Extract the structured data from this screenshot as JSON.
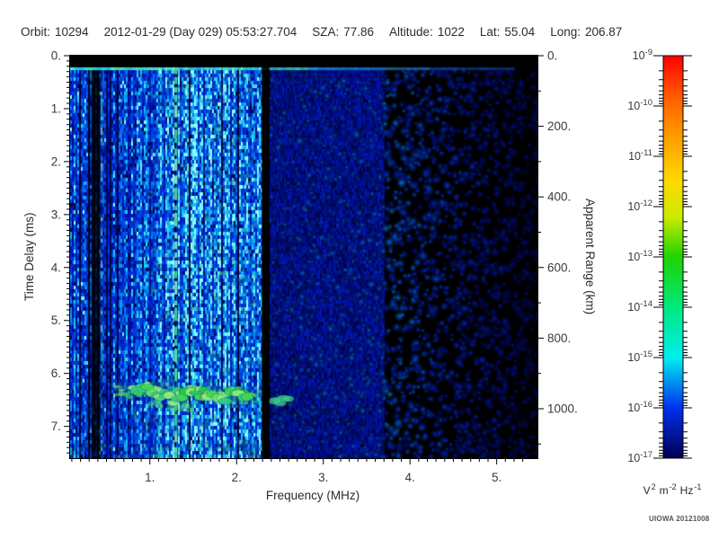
{
  "header": {
    "fields": [
      {
        "label": "Orbit:",
        "value": "10294"
      },
      {
        "label": "",
        "value": "2012-01-29 (Day 029) 05:53:27.704"
      },
      {
        "label": "SZA:",
        "value": "77.86"
      },
      {
        "label": "Altitude:",
        "value": "1022"
      },
      {
        "label": "Lat:",
        "value": "55.04"
      },
      {
        "label": "Long:",
        "value": "206.87"
      }
    ]
  },
  "footer": {
    "credit": "UIOWA 20121008"
  },
  "chart_data": {
    "type": "heatmap",
    "title": "",
    "xlabel": "Frequency (MHz)",
    "ylabel_left": "Time Delay (ms)",
    "ylabel_right": "Apparent Range (km)",
    "x_range": [
      0.08,
      5.47
    ],
    "t_range": [
      0,
      7.6
    ],
    "range_km": [
      0,
      1140
    ],
    "x_ticks": {
      "values": [
        1,
        2,
        3,
        4,
        5
      ],
      "labels": [
        "1.",
        "2.",
        "3.",
        "4.",
        "5."
      ],
      "minor_step": 0.1
    },
    "left_ticks": {
      "values": [
        0,
        1,
        2,
        3,
        4,
        5,
        6,
        7
      ],
      "labels": [
        "0.",
        "1.",
        "2.",
        "3.",
        "4.",
        "5.",
        "6.",
        "7."
      ],
      "minor_step": 0.1
    },
    "right_ticks": {
      "values": [
        0,
        200,
        400,
        600,
        800,
        1000
      ],
      "labels": [
        "0.",
        "200.",
        "400.",
        "600.",
        "800.",
        "1000."
      ],
      "minor_step": 100
    },
    "colorbar": {
      "base": "10",
      "exponents": [
        "-9",
        "-10",
        "-11",
        "-12",
        "-13",
        "-14",
        "-15",
        "-16",
        "-17"
      ],
      "unit_parts": [
        [
          "V",
          "2"
        ],
        [
          "m",
          "-2"
        ],
        [
          "Hz",
          "-1"
        ]
      ],
      "gradient": [
        [
          0,
          "#ff0000"
        ],
        [
          0.1,
          "#ff5a00"
        ],
        [
          0.2,
          "#ff9c00"
        ],
        [
          0.31,
          "#ffd800"
        ],
        [
          0.4,
          "#cdeb00"
        ],
        [
          0.5,
          "#1ed400"
        ],
        [
          0.625,
          "#00e87e"
        ],
        [
          0.75,
          "#00eef0"
        ],
        [
          0.875,
          "#0030f0"
        ],
        [
          1,
          "#000052"
        ]
      ]
    },
    "noise_palette": [
      [
        0,
        "#000000"
      ],
      [
        0.28,
        "#0010a8"
      ],
      [
        0.5,
        "#0038e0"
      ],
      [
        0.68,
        "#0080f0"
      ],
      [
        0.84,
        "#20d0f0"
      ],
      [
        1,
        "#90ffff"
      ]
    ],
    "colors": {
      "background": "#ffffff",
      "plot_bg": "#000000",
      "frame": "#000000",
      "tick_text": "#3a3a3a",
      "title_text": "#2b2b2b"
    },
    "features": {
      "top_blank_band": {
        "t": [
          0,
          0.22
        ]
      },
      "surface_line": {
        "t": 0.25,
        "f": [
          0.08,
          5.2
        ]
      },
      "dark_band": {
        "f": [
          0.33,
          0.42
        ]
      },
      "dashed_bright_line": {
        "f": 1.3,
        "colors": [
          "#58e8a8",
          "#84f0c8",
          "#48dc96"
        ]
      },
      "data_gap": {
        "f": [
          2.29,
          2.38
        ]
      },
      "echo_trace": {
        "f": [
          0.62,
          2.26
        ],
        "t": [
          6.27,
          6.4
        ],
        "colors": [
          "#1fca4e",
          "#3fd75f",
          "#66e272",
          "#8ceb86",
          "#2ed089"
        ],
        "halo": "#30b8e8"
      },
      "echo_blob": {
        "f": [
          2.43,
          2.6
        ],
        "t": 6.52,
        "color": "#38d088"
      },
      "noise_regions": [
        {
          "f": [
            0.08,
            1.0
          ],
          "style": "fine-vertical-stripes",
          "brightness": 0.52
        },
        {
          "f": [
            1.0,
            2.29
          ],
          "style": "stripes-with-cyan-specks",
          "brightness": 0.62
        },
        {
          "f": [
            2.38,
            3.7
          ],
          "style": "mottled-blobs",
          "brightness": 0.5
        },
        {
          "f": [
            3.7,
            5.47
          ],
          "style": "sparse-dark-blobs",
          "brightness": 0.28
        }
      ]
    }
  }
}
